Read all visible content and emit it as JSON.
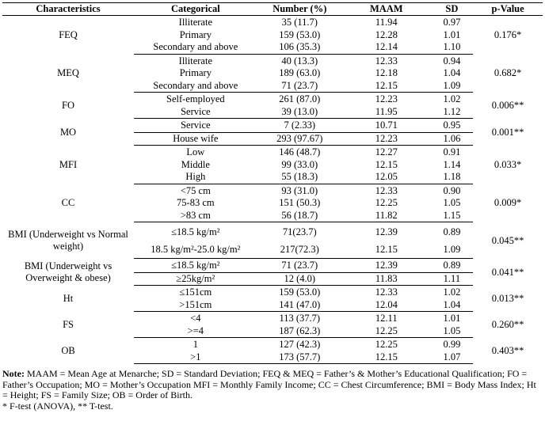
{
  "headers": [
    "Characteristics",
    "Categorical",
    "Number (%)",
    "MAAM",
    "SD",
    "p-Value"
  ],
  "groups": [
    {
      "name": "FEQ",
      "p": "0.176*",
      "rows": [
        [
          "Illiterate",
          "35 (11.7)",
          "11.94",
          "0.97"
        ],
        [
          "Primary",
          "159 (53.0)",
          "12.28",
          "1.01"
        ],
        [
          "Secondary and above",
          "106 (35.3)",
          "12.14",
          "1.10"
        ]
      ]
    },
    {
      "name": "MEQ",
      "p": "0.682*",
      "rows": [
        [
          "Illiterate",
          "40 (13.3)",
          "12.33",
          "0.94"
        ],
        [
          "Primary",
          "189 (63.0)",
          "12.18",
          "1.04"
        ],
        [
          "Secondary and above",
          "71 (23.7)",
          "12.15",
          "1.09"
        ]
      ]
    },
    {
      "name": "FO",
      "p": "0.006**",
      "rows": [
        [
          "Self-employed",
          "261 (87.0)",
          "12.23",
          "1.02"
        ],
        [
          "Service",
          "39 (13.0)",
          "11.95",
          "1.12"
        ]
      ]
    },
    {
      "name": "MO",
      "p": "0.001**",
      "inner": true,
      "rows": [
        [
          "Service",
          "7 (2.33)",
          "10.71",
          "0.95"
        ],
        [
          "House wife",
          "293 (97.67)",
          "12.23",
          "1.06"
        ]
      ]
    },
    {
      "name": "MFI",
      "p": "0.033*",
      "rows": [
        [
          "Low",
          "146 (48.7)",
          "12.27",
          "0.91"
        ],
        [
          "Middle",
          "99 (33.0)",
          "12.15",
          "1.14"
        ],
        [
          "High",
          "55 (18.3)",
          "12.05",
          "1.18"
        ]
      ]
    },
    {
      "name": "CC",
      "p": "0.009*",
      "rows": [
        [
          "<75 cm",
          "93 (31.0)",
          "12.33",
          "0.90"
        ],
        [
          "75-83 cm",
          "151 (50.3)",
          "12.25",
          "1.05"
        ],
        [
          ">83 cm",
          "56 (18.7)",
          "11.82",
          "1.15"
        ]
      ]
    },
    {
      "name": "BMI (Underweight vs Normal weight)",
      "p": "0.045**",
      "tall": true,
      "rows": [
        [
          "≤18.5 kg/m²",
          "71(23.7)",
          "12.39",
          "0.89"
        ],
        [
          "18.5 kg/m²-25.0 kg/m²",
          "217(72.3)",
          "12.15",
          "1.09"
        ]
      ]
    },
    {
      "name": "BMI (Underweight vs Overweight & obese)",
      "p": "0.041**",
      "inner": true,
      "rows": [
        [
          "≤18.5 kg/m²",
          "71 (23.7)",
          "12.39",
          "0.89"
        ],
        [
          "≥25kg/m²",
          "12 (4.0)",
          "11.83",
          "1.11"
        ]
      ]
    },
    {
      "name": "Ht",
      "p": "0.013**",
      "rows": [
        [
          "≤151cm",
          "159 (53.0)",
          "12.33",
          "1.02"
        ],
        [
          ">151cm",
          "141 (47.0)",
          "12.04",
          "1.04"
        ]
      ]
    },
    {
      "name": "FS",
      "p": "0.260**",
      "rows": [
        [
          "<4",
          "113 (37.7)",
          "12.11",
          "1.01"
        ],
        [
          ">=4",
          "187 (62.3)",
          "12.25",
          "1.05"
        ]
      ]
    },
    {
      "name": "OB",
      "p": "0.403**",
      "rows": [
        [
          "1",
          "127 (42.3)",
          "12.25",
          "0.99"
        ],
        [
          ">1",
          "173 (57.7)",
          "12.15",
          "1.07"
        ]
      ]
    }
  ],
  "note": {
    "label": "Note:",
    "text": " MAAM = Mean Age at Menarche; SD = Standard Deviation; FEQ & MEQ = Father’s & Mother’s Educational  Qualification;  FO = Father’s Occupation; MO = Mother’s Occupation MFI = Monthly Family Income; CC = Chest Circumference; BMI = Body Mass Index; Ht = Height; FS = Family Size; OB = Order of Birth.",
    "tests": "* F-test (ANOVA), ** T-test."
  }
}
